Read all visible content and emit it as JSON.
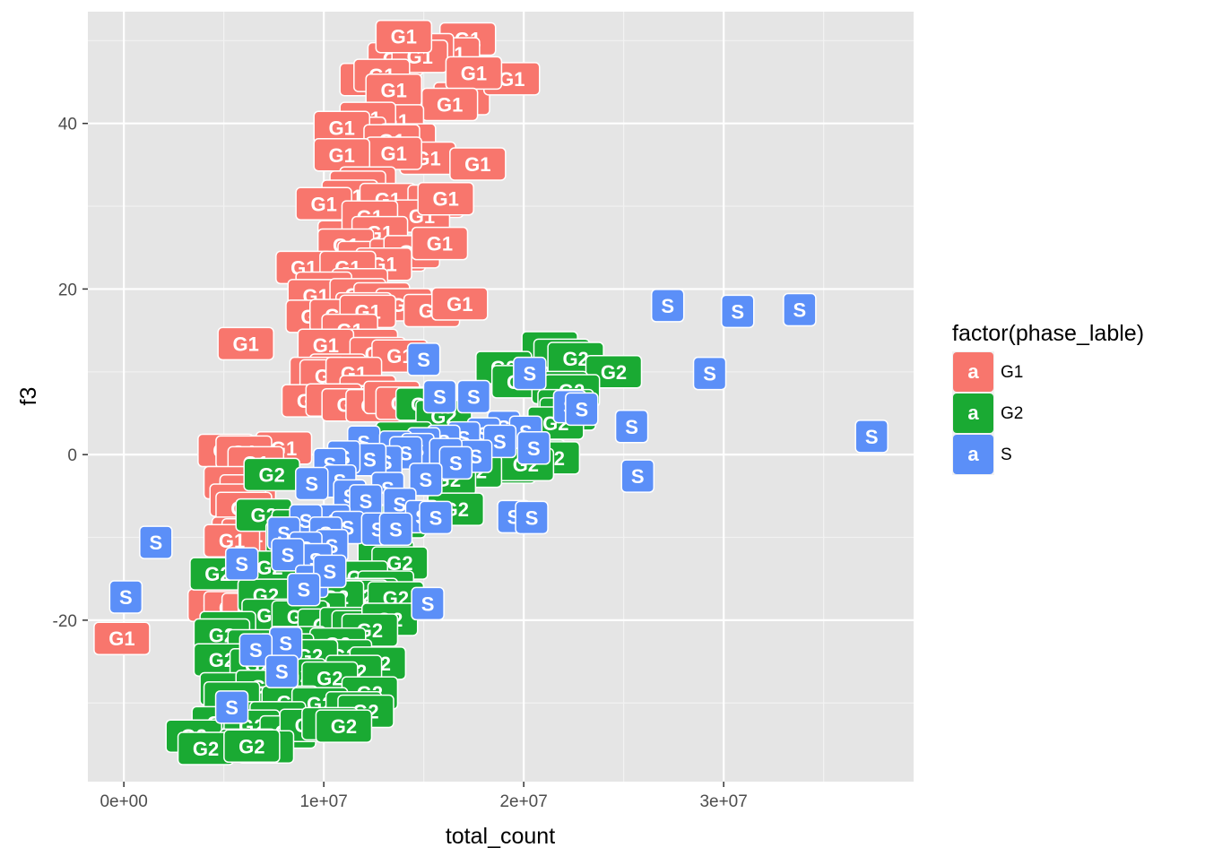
{
  "chart_data": {
    "type": "scatter",
    "title": "",
    "xlabel": "total_count",
    "ylabel": "f3",
    "xlim": [
      -1800000,
      39500000
    ],
    "ylim": [
      -39.5,
      53.5
    ],
    "x_ticks": [
      {
        "value": 0,
        "label": "0e+00"
      },
      {
        "value": 10000000,
        "label": "1e+07"
      },
      {
        "value": 20000000,
        "label": "2e+07"
      },
      {
        "value": 30000000,
        "label": "3e+07"
      }
    ],
    "y_ticks": [
      {
        "value": -20,
        "label": "-20"
      },
      {
        "value": 0,
        "label": "0"
      },
      {
        "value": 20,
        "label": "20"
      },
      {
        "value": 40,
        "label": "40"
      }
    ],
    "background": "#e5e5e5",
    "grid": true,
    "legend": {
      "title": "factor(phase_lable)",
      "position": "right",
      "key_glyph": "a",
      "entries": [
        {
          "label": "G1",
          "color": "#f8766d"
        },
        {
          "label": "G2",
          "color": "#1aaa33"
        },
        {
          "label": "S",
          "color": "#5b8ff8"
        }
      ]
    },
    "series": [
      {
        "name": "G1",
        "label": "G1",
        "color": "#f8766d",
        "points": [
          [
            17200000,
            50.2
          ],
          [
            16400000,
            48.4
          ],
          [
            15100000,
            48.9
          ],
          [
            13600000,
            47.8
          ],
          [
            14800000,
            48.1
          ],
          [
            14000000,
            50.5
          ],
          [
            12200000,
            45.3
          ],
          [
            12900000,
            45.8
          ],
          [
            13500000,
            44.0
          ],
          [
            16900000,
            43.0
          ],
          [
            19400000,
            45.4
          ],
          [
            17500000,
            46.1
          ],
          [
            16300000,
            42.3
          ],
          [
            13600000,
            40.3
          ],
          [
            12200000,
            40.6
          ],
          [
            11700000,
            38.8
          ],
          [
            14200000,
            38.0
          ],
          [
            10900000,
            39.5
          ],
          [
            13400000,
            37.9
          ],
          [
            15200000,
            35.8
          ],
          [
            13500000,
            36.4
          ],
          [
            10900000,
            36.2
          ],
          [
            17700000,
            35.1
          ],
          [
            12200000,
            32.8
          ],
          [
            11700000,
            32.3
          ],
          [
            11300000,
            31.2
          ],
          [
            13200000,
            30.8
          ],
          [
            15600000,
            30.6
          ],
          [
            14900000,
            28.8
          ],
          [
            16100000,
            30.9
          ],
          [
            10000000,
            30.3
          ],
          [
            11100000,
            26.3
          ],
          [
            12300000,
            28.7
          ],
          [
            12800000,
            26.8
          ],
          [
            11100000,
            25.3
          ],
          [
            12100000,
            23.8
          ],
          [
            13700000,
            24.1
          ],
          [
            14400000,
            24.5
          ],
          [
            15800000,
            25.5
          ],
          [
            13000000,
            23.0
          ],
          [
            9000000,
            22.6
          ],
          [
            11200000,
            22.6
          ],
          [
            11800000,
            20.5
          ],
          [
            10000000,
            20.1
          ],
          [
            9600000,
            19.2
          ],
          [
            11700000,
            19.3
          ],
          [
            12900000,
            18.8
          ],
          [
            14000000,
            18.1
          ],
          [
            12000000,
            17.6
          ],
          [
            15400000,
            17.4
          ],
          [
            16800000,
            18.2
          ],
          [
            9500000,
            16.7
          ],
          [
            10700000,
            16.8
          ],
          [
            12200000,
            17.3
          ],
          [
            11300000,
            15.0
          ],
          [
            12300000,
            13.2
          ],
          [
            10100000,
            13.2
          ],
          [
            6100000,
            13.4
          ],
          [
            12700000,
            12.2
          ],
          [
            10700000,
            10.2
          ],
          [
            13800000,
            11.9
          ],
          [
            9700000,
            9.8
          ],
          [
            10200000,
            9.5
          ],
          [
            11500000,
            9.8
          ],
          [
            12200000,
            7.6
          ],
          [
            9300000,
            6.5
          ],
          [
            10500000,
            6.6
          ],
          [
            11300000,
            6.0
          ],
          [
            12500000,
            5.9
          ],
          [
            13400000,
            6.9
          ],
          [
            14000000,
            6.2
          ],
          [
            8000000,
            0.8
          ],
          [
            5100000,
            0.5
          ],
          [
            6000000,
            0.3
          ],
          [
            6600000,
            -1.0
          ],
          [
            5400000,
            -3.4
          ],
          [
            6200000,
            -4.4
          ],
          [
            5700000,
            -5.5
          ],
          [
            6000000,
            -6.5
          ],
          [
            5800000,
            -9.5
          ],
          [
            6300000,
            -9.7
          ],
          [
            5400000,
            -10.4
          ],
          [
            7200000,
            -13.8
          ],
          [
            4600000,
            -18.2
          ],
          [
            5400000,
            -18.5
          ],
          [
            6300000,
            -18.7
          ],
          [
            -100000,
            -22.2
          ]
        ]
      },
      {
        "name": "G2",
        "label": "G2",
        "color": "#1aaa33",
        "points": [
          [
            21300000,
            12.9
          ],
          [
            21900000,
            12.0
          ],
          [
            22600000,
            11.6
          ],
          [
            19000000,
            10.5
          ],
          [
            24500000,
            10.0
          ],
          [
            19800000,
            8.8
          ],
          [
            21800000,
            8.1
          ],
          [
            22400000,
            7.7
          ],
          [
            22100000,
            5.9
          ],
          [
            22200000,
            4.9
          ],
          [
            15000000,
            6.1
          ],
          [
            16000000,
            4.6
          ],
          [
            21600000,
            3.8
          ],
          [
            14000000,
            2.0
          ],
          [
            14800000,
            0.4
          ],
          [
            19700000,
            0.0
          ],
          [
            20700000,
            -0.2
          ],
          [
            21400000,
            -0.4
          ],
          [
            19200000,
            -1.5
          ],
          [
            20100000,
            -1.2
          ],
          [
            17500000,
            -2.0
          ],
          [
            16200000,
            -3.0
          ],
          [
            7400000,
            -2.4
          ],
          [
            16600000,
            -6.6
          ],
          [
            7000000,
            -7.3
          ],
          [
            8800000,
            -8.6
          ],
          [
            13700000,
            -8.1
          ],
          [
            8500000,
            -10.1
          ],
          [
            9500000,
            -11.1
          ],
          [
            13100000,
            -12.3
          ],
          [
            13800000,
            -13.1
          ],
          [
            11800000,
            -14.8
          ],
          [
            4700000,
            -14.4
          ],
          [
            7300000,
            -13.6
          ],
          [
            13100000,
            -16.0
          ],
          [
            12300000,
            -16.9
          ],
          [
            11800000,
            -17.1
          ],
          [
            9100000,
            -17.6
          ],
          [
            10600000,
            -17.2
          ],
          [
            13600000,
            -17.3
          ],
          [
            7100000,
            -17.0
          ],
          [
            9700000,
            -18.6
          ],
          [
            7300000,
            -19.4
          ],
          [
            8800000,
            -19.6
          ],
          [
            5200000,
            -20.9
          ],
          [
            10100000,
            -20.6
          ],
          [
            11200000,
            -20.4
          ],
          [
            11800000,
            -20.8
          ],
          [
            13300000,
            -19.9
          ],
          [
            12300000,
            -21.2
          ],
          [
            4900000,
            -21.8
          ],
          [
            8700000,
            -22.7
          ],
          [
            10700000,
            -22.9
          ],
          [
            6600000,
            -23.1
          ],
          [
            8100000,
            -23.6
          ],
          [
            11000000,
            -24.3
          ],
          [
            12700000,
            -25.2
          ],
          [
            9300000,
            -24.3
          ],
          [
            11500000,
            -26.2
          ],
          [
            4900000,
            -24.8
          ],
          [
            6700000,
            -25.4
          ],
          [
            8700000,
            -26.6
          ],
          [
            10300000,
            -27.0
          ],
          [
            5200000,
            -28.3
          ],
          [
            7000000,
            -28.0
          ],
          [
            12300000,
            -28.8
          ],
          [
            5400000,
            -29.4
          ],
          [
            8300000,
            -29.9
          ],
          [
            9800000,
            -30.1
          ],
          [
            11500000,
            -30.6
          ],
          [
            12100000,
            -31.0
          ],
          [
            6600000,
            -31.8
          ],
          [
            7700000,
            -31.8
          ],
          [
            4800000,
            -32.4
          ],
          [
            3500000,
            -34.0
          ],
          [
            6400000,
            -32.8
          ],
          [
            8200000,
            -33.5
          ],
          [
            9200000,
            -32.7
          ],
          [
            10300000,
            -32.5
          ],
          [
            11000000,
            -32.8
          ],
          [
            6200000,
            -35.1
          ],
          [
            7100000,
            -35.3
          ],
          [
            4100000,
            -35.5
          ],
          [
            6400000,
            -35.2
          ]
        ]
      },
      {
        "name": "S",
        "label": "S",
        "color": "#5b8ff8",
        "points": [
          [
            27200000,
            18.0
          ],
          [
            30700000,
            17.3
          ],
          [
            33800000,
            17.5
          ],
          [
            29300000,
            9.8
          ],
          [
            20300000,
            9.8
          ],
          [
            15000000,
            11.5
          ],
          [
            15800000,
            7.0
          ],
          [
            17500000,
            7.0
          ],
          [
            22300000,
            5.8
          ],
          [
            22900000,
            5.5
          ],
          [
            25400000,
            3.4
          ],
          [
            19000000,
            3.3
          ],
          [
            20100000,
            2.7
          ],
          [
            18000000,
            2.5
          ],
          [
            17000000,
            2.0
          ],
          [
            16000000,
            1.6
          ],
          [
            15000000,
            1.3
          ],
          [
            12000000,
            1.5
          ],
          [
            37400000,
            2.2
          ],
          [
            13600000,
            0.9
          ],
          [
            14700000,
            0.6
          ],
          [
            18800000,
            1.6
          ],
          [
            20500000,
            0.8
          ],
          [
            17600000,
            -0.2
          ],
          [
            16100000,
            0.0
          ],
          [
            14100000,
            0.2
          ],
          [
            13100000,
            -0.9
          ],
          [
            12300000,
            -0.6
          ],
          [
            11000000,
            -0.3
          ],
          [
            10300000,
            -1.2
          ],
          [
            16600000,
            -1.0
          ],
          [
            25700000,
            -2.6
          ],
          [
            15100000,
            -3.0
          ],
          [
            13200000,
            -4.1
          ],
          [
            10800000,
            -3.2
          ],
          [
            9400000,
            -3.5
          ],
          [
            11300000,
            -5.0
          ],
          [
            12100000,
            -5.6
          ],
          [
            13800000,
            -6.0
          ],
          [
            14900000,
            -7.5
          ],
          [
            15600000,
            -7.6
          ],
          [
            10500000,
            -8.0
          ],
          [
            11200000,
            -8.8
          ],
          [
            9100000,
            -8.0
          ],
          [
            8000000,
            -9.5
          ],
          [
            10100000,
            -9.5
          ],
          [
            12700000,
            -9.0
          ],
          [
            13600000,
            -9.0
          ],
          [
            19500000,
            -7.5
          ],
          [
            20400000,
            -7.6
          ],
          [
            10400000,
            -11.0
          ],
          [
            9100000,
            -11.3
          ],
          [
            1600000,
            -10.6
          ],
          [
            9600000,
            -12.7
          ],
          [
            8200000,
            -12.1
          ],
          [
            5900000,
            -13.2
          ],
          [
            9400000,
            -15.3
          ],
          [
            10300000,
            -14.1
          ],
          [
            9000000,
            -16.3
          ],
          [
            15200000,
            -18.0
          ],
          [
            100000,
            -17.2
          ],
          [
            8100000,
            -22.8
          ],
          [
            6600000,
            -23.6
          ],
          [
            7900000,
            -26.2
          ],
          [
            5400000,
            -30.5
          ]
        ]
      }
    ]
  }
}
